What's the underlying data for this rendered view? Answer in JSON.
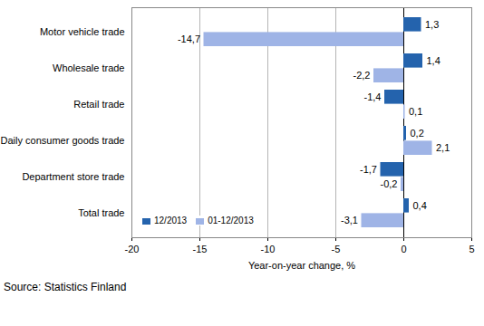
{
  "chart_data": {
    "type": "bar",
    "orientation": "horizontal",
    "categories": [
      "Motor vehicle trade",
      "Wholesale trade",
      "Retail trade",
      "Daily consumer goods trade",
      "Department store trade",
      "Total trade"
    ],
    "series": [
      {
        "name": "12/2013",
        "color": "#2463ad",
        "values": [
          1.3,
          1.4,
          -1.4,
          0.2,
          -1.7,
          0.4
        ],
        "value_labels": [
          "1,3",
          "1,4",
          "-1,4",
          "0,2",
          "-1,7",
          "0,4"
        ]
      },
      {
        "name": "01-12/2013",
        "color": "#9fb4e6",
        "values": [
          -14.7,
          -2.2,
          0.1,
          2.1,
          -0.2,
          -3.1
        ],
        "value_labels": [
          "-14,7",
          "-2,2",
          "0,1",
          "2,1",
          "-0,2",
          "-3,1"
        ]
      }
    ],
    "xlim": [
      -20,
      5
    ],
    "xticks": [
      -20,
      -15,
      -10,
      -5,
      0,
      5
    ],
    "xlabel": "Year-on-year change, %",
    "caption": "Source: Statistics Finland",
    "grid": true,
    "legend": "lower left",
    "data_labels": true
  }
}
